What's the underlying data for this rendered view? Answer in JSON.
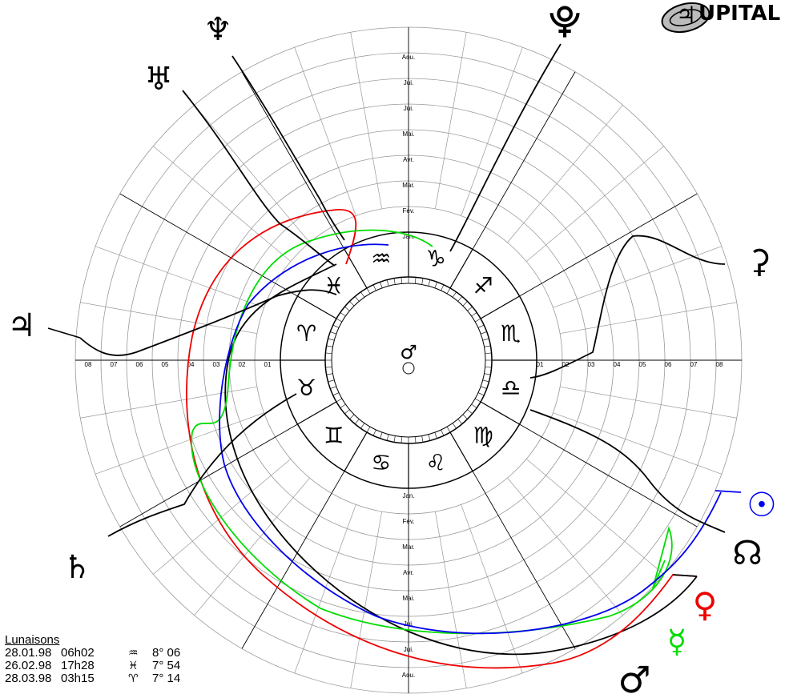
{
  "brand": {
    "name": "UPITAL",
    "glyph": "♃"
  },
  "center_symbol": "♂",
  "zodiac_signs": [
    "♑",
    "♐",
    "♏",
    "♎",
    "♍",
    "♌",
    "♋",
    "♊",
    "♉",
    "♈",
    "♓",
    "♒"
  ],
  "months_top": [
    "Jan.",
    "Fév.",
    "Mar.",
    "Avr.",
    "Mai.",
    "Jui.",
    "Jui.",
    "Aou."
  ],
  "months_bottom": [
    "Jan.",
    "Fév.",
    "Mar.",
    "Avr.",
    "Mai.",
    "Jui.",
    "Jui.",
    "Aou."
  ],
  "scale_left": [
    "01",
    "02",
    "03",
    "04",
    "05",
    "06",
    "07",
    "08"
  ],
  "scale_right": [
    "01",
    "02",
    "03",
    "04",
    "05",
    "06",
    "07",
    "08"
  ],
  "planet_glyphs": {
    "jupiter": "♃",
    "saturn": "♄",
    "uranus": "♅",
    "neptune": "♆",
    "pluto_top": "⯓",
    "ceres": "⚳",
    "sun": "☉",
    "node": "☊",
    "venus": "♀",
    "mercury": "☿",
    "mars": "♂"
  },
  "colors": {
    "mars": "#000000",
    "sun": "#0000ee",
    "venus": "#ee0000",
    "mercury": "#00dd00",
    "grid": "#888888"
  },
  "lunaisons": {
    "title": "Lunaisons",
    "rows": [
      {
        "date": "28.01.98",
        "time": "06h02",
        "sign": "♒",
        "deg": "8° 06"
      },
      {
        "date": "26.02.98",
        "time": "17h28",
        "sign": "♓",
        "deg": "7° 54"
      },
      {
        "date": "28.03.98",
        "time": "03h15",
        "sign": "♈",
        "deg": "7° 14"
      }
    ]
  }
}
